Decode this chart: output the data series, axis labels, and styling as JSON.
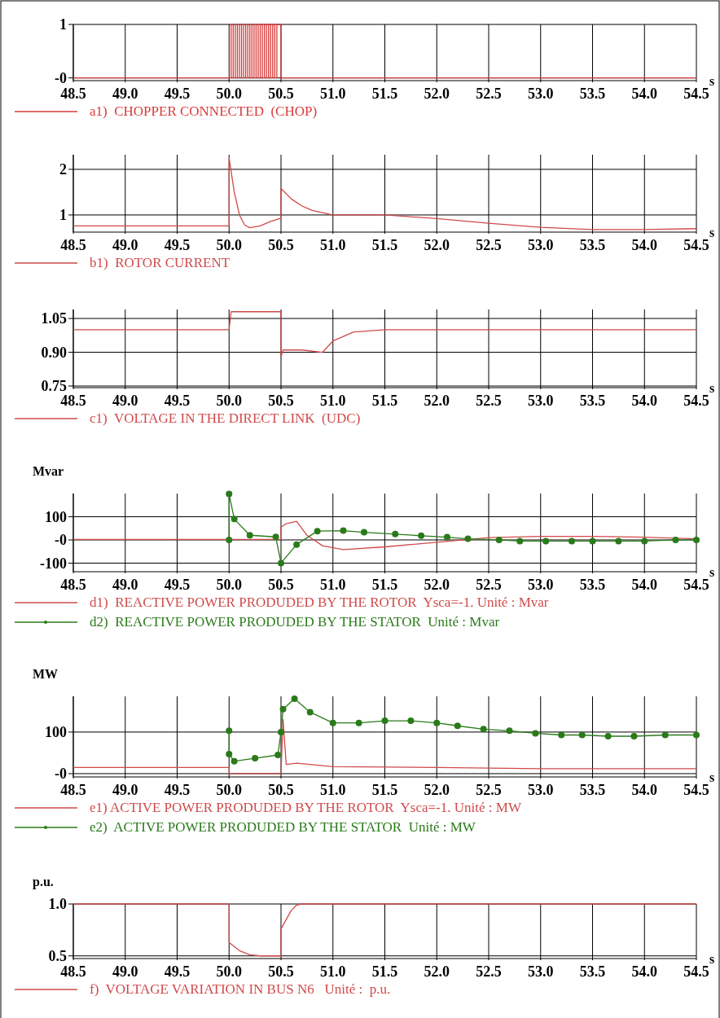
{
  "chart_data": [
    {
      "type": "step",
      "xlabel": "s",
      "xlim": [
        48.5,
        54.5
      ],
      "ylim": [
        -0.02,
        1
      ],
      "xticks": [
        48.5,
        {
          "value": 49,
          "label": "49.0"
        },
        49.5,
        {
          "value": 50,
          "label": "50.0"
        },
        50.5,
        {
          "value": 51,
          "label": "51.0"
        },
        51.5,
        {
          "value": 52,
          "label": "52.0"
        },
        52.5,
        {
          "value": 53,
          "label": "53.0"
        },
        53.5,
        {
          "value": 54,
          "label": "54.0"
        },
        54.5
      ],
      "yticks": [
        {
          "value": 0,
          "label": "-0"
        },
        1
      ],
      "grid": true,
      "legend": "bottom",
      "series": [
        {
          "name": "a1)  CHOPPER CONNECTED  (CHOP)",
          "color": "#d83a3a",
          "x": [
            48.5,
            50.02,
            50.04,
            50.06,
            50.08,
            50.1,
            50.12,
            50.14,
            50.16,
            50.18,
            50.2,
            50.22,
            50.24,
            50.26,
            50.28,
            50.3,
            50.32,
            50.34,
            50.36,
            50.38,
            50.4,
            50.42,
            50.44,
            50.46,
            50.48,
            50.5,
            54.5
          ],
          "values": [
            0,
            1,
            0,
            1,
            0,
            1,
            0,
            1,
            0,
            1,
            0,
            1,
            0,
            1,
            0,
            1,
            0,
            1,
            0,
            1,
            0,
            1,
            0,
            1,
            1,
            0,
            0
          ]
        }
      ]
    },
    {
      "type": "line",
      "xlabel": "s",
      "xlim": [
        48.5,
        54.5
      ],
      "ylim": [
        0.66,
        2.32
      ],
      "xticks": [
        48.5,
        {
          "value": 49,
          "label": "49.0"
        },
        49.5,
        {
          "value": 50,
          "label": "50.0"
        },
        50.5,
        {
          "value": 51,
          "label": "51.0"
        },
        51.5,
        {
          "value": 52,
          "label": "52.0"
        },
        52.5,
        {
          "value": 53,
          "label": "53.0"
        },
        53.5,
        {
          "value": 54,
          "label": "54.0"
        },
        54.5
      ],
      "yticks": [
        1,
        2
      ],
      "grid": true,
      "legend": "bottom",
      "series": [
        {
          "name": "b1)  ROTOR CURRENT",
          "color": "#d04a4a",
          "x": [
            48.5,
            50.0,
            50.0,
            50.05,
            50.1,
            50.15,
            50.2,
            50.3,
            50.4,
            50.5,
            50.5,
            50.6,
            50.7,
            50.8,
            51.0,
            51.5,
            52.0,
            52.5,
            53.0,
            53.5,
            54.0,
            54.5
          ],
          "values": [
            0.76,
            0.76,
            2.25,
            1.5,
            1.0,
            0.78,
            0.72,
            0.76,
            0.86,
            0.93,
            1.58,
            1.35,
            1.2,
            1.1,
            1.0,
            1.0,
            0.92,
            0.82,
            0.73,
            0.68,
            0.68,
            0.7
          ]
        }
      ]
    },
    {
      "type": "line",
      "xlabel": "s",
      "xlim": [
        48.5,
        54.5
      ],
      "ylim": [
        0.75,
        1.09
      ],
      "xticks": [
        48.5,
        {
          "value": 49,
          "label": "49.0"
        },
        49.5,
        {
          "value": 50,
          "label": "50.0"
        },
        50.5,
        {
          "value": 51,
          "label": "51.0"
        },
        51.5,
        {
          "value": 52,
          "label": "52.0"
        },
        52.5,
        {
          "value": 53,
          "label": "53.0"
        },
        53.5,
        {
          "value": 54,
          "label": "54.0"
        },
        54.5
      ],
      "yticks": [
        {
          "value": 0.75,
          "label": "0.75"
        },
        {
          "value": 0.9,
          "label": "0.90"
        },
        {
          "value": 1.05,
          "label": "1.05"
        }
      ],
      "grid": true,
      "legend": "bottom",
      "series": [
        {
          "name": "c1)  VOLTAGE IN THE DIRECT LINK  (UDC)",
          "color": "#d04a4a",
          "x": [
            48.5,
            50.0,
            50.01,
            50.02,
            50.5,
            50.5,
            50.52,
            50.7,
            50.9,
            51.0,
            51.2,
            51.5,
            54.5
          ],
          "values": [
            1.0,
            1.0,
            1.04,
            1.08,
            1.08,
            0.88,
            0.91,
            0.91,
            0.9,
            0.95,
            0.99,
            1.0,
            1.0
          ]
        }
      ]
    },
    {
      "type": "line",
      "xlabel": "s",
      "ylabel": "Mvar",
      "xlim": [
        48.5,
        54.5
      ],
      "ylim": [
        -130,
        200
      ],
      "xticks": [
        48.5,
        {
          "value": 49,
          "label": "49.0"
        },
        49.5,
        {
          "value": 50,
          "label": "50.0"
        },
        50.5,
        {
          "value": 51,
          "label": "51.0"
        },
        51.5,
        {
          "value": 52,
          "label": "52.0"
        },
        52.5,
        {
          "value": 53,
          "label": "53.0"
        },
        53.5,
        {
          "value": 54,
          "label": "54.0"
        },
        54.5
      ],
      "yticks": [
        -100,
        {
          "value": 0,
          "label": "-0"
        },
        100
      ],
      "grid": true,
      "legend": "bottom",
      "series": [
        {
          "name": "d1)  REACTIVE POWER PRODUDED BY THE ROTOR  Ysca=-1. Unité : Mvar",
          "color": "#d04a4a",
          "x": [
            48.5,
            50.5,
            50.5,
            50.55,
            50.65,
            50.75,
            50.9,
            51.1,
            51.5,
            52.0,
            52.5,
            53.0,
            53.5,
            54.0,
            54.5
          ],
          "values": [
            2,
            2,
            55,
            70,
            80,
            20,
            -25,
            -42,
            -30,
            -10,
            10,
            15,
            15,
            12,
            5
          ]
        },
        {
          "name": "d2)  REACTIVE POWER PRODUDED BY THE STATOR  Unité : Mvar",
          "color": "#2a7a1a",
          "marker": "circle",
          "x": [
            50.0,
            50.0,
            50.05,
            50.2,
            50.45,
            50.5,
            50.65,
            50.85,
            51.1,
            51.3,
            51.6,
            51.85,
            52.1,
            52.3,
            52.6,
            52.8,
            53.05,
            53.3,
            53.5,
            53.75,
            54.0,
            54.3,
            54.5
          ],
          "values": [
            0,
            198,
            90,
            20,
            13,
            -100,
            -20,
            38,
            40,
            33,
            25,
            18,
            12,
            5,
            0,
            -5,
            -5,
            -5,
            -5,
            -5,
            -5,
            0,
            0
          ]
        }
      ]
    },
    {
      "type": "line",
      "xlabel": "s",
      "ylabel": "MW",
      "xlim": [
        48.5,
        54.5
      ],
      "ylim": [
        -4,
        186
      ],
      "xticks": [
        48.5,
        {
          "value": 49,
          "label": "49.0"
        },
        49.5,
        {
          "value": 50,
          "label": "50.0"
        },
        50.5,
        {
          "value": 51,
          "label": "51.0"
        },
        51.5,
        {
          "value": 52,
          "label": "52.0"
        },
        52.5,
        {
          "value": 53,
          "label": "53.0"
        },
        53.5,
        {
          "value": 54,
          "label": "54.0"
        },
        54.5
      ],
      "yticks": [
        {
          "value": 0,
          "label": "-0"
        },
        100
      ],
      "grid": true,
      "legend": "bottom",
      "series": [
        {
          "name": "e1) ACTIVE POWER PRODUDED BY THE ROTOR  Ysca=-1. Unité : MW",
          "color": "#d04a4a",
          "x": [
            48.5,
            50.0,
            50.0,
            50.5,
            50.52,
            50.55,
            50.65,
            51.0,
            52.0,
            53.0,
            54.5
          ],
          "values": [
            15,
            15,
            0,
            0,
            130,
            22,
            25,
            17,
            15,
            12,
            12
          ]
        },
        {
          "name": "e2)  ACTIVE POWER PRODUDED BY THE STATOR  Unité : MW",
          "color": "#2a7a1a",
          "marker": "circle",
          "x": [
            50.0,
            50.0,
            50.05,
            50.25,
            50.47,
            50.5,
            50.52,
            50.63,
            50.78,
            51.0,
            51.25,
            51.5,
            51.75,
            52.0,
            52.2,
            52.45,
            52.7,
            52.95,
            53.2,
            53.4,
            53.65,
            53.9,
            54.2,
            54.5
          ],
          "values": [
            103,
            47,
            30,
            37,
            45,
            100,
            155,
            180,
            148,
            122,
            122,
            127,
            127,
            122,
            115,
            107,
            103,
            97,
            93,
            93,
            90,
            90,
            93,
            93
          ]
        }
      ]
    },
    {
      "type": "line",
      "xlabel": "s",
      "ylabel": "p.u.",
      "xlim": [
        48.5,
        54.5
      ],
      "ylim": [
        0.49,
        1.0
      ],
      "xticks": [
        48.5,
        {
          "value": 49,
          "label": "49.0"
        },
        49.5,
        {
          "value": 50,
          "label": "50.0"
        },
        50.5,
        {
          "value": 51,
          "label": "51.0"
        },
        51.5,
        {
          "value": 52,
          "label": "52.0"
        },
        52.5,
        {
          "value": 53,
          "label": "53.0"
        },
        53.5,
        {
          "value": 54,
          "label": "54.0"
        },
        54.5
      ],
      "yticks": [
        {
          "value": 0.5,
          "label": "0.5"
        },
        {
          "value": 1,
          "label": "1.0"
        }
      ],
      "grid": true,
      "legend": "bottom",
      "series": [
        {
          "name": "f)  VOLTAGE VARIATION IN BUS N6   Unité :  p.u.",
          "color": "#d04a4a",
          "x": [
            48.5,
            50.0,
            50.0,
            50.1,
            50.2,
            50.3,
            50.5,
            50.5,
            50.55,
            50.6,
            50.65,
            50.7,
            54.5
          ],
          "values": [
            1.0,
            1.0,
            0.63,
            0.55,
            0.51,
            0.5,
            0.5,
            0.76,
            0.85,
            0.94,
            0.99,
            1.0,
            1.0
          ]
        }
      ]
    }
  ]
}
